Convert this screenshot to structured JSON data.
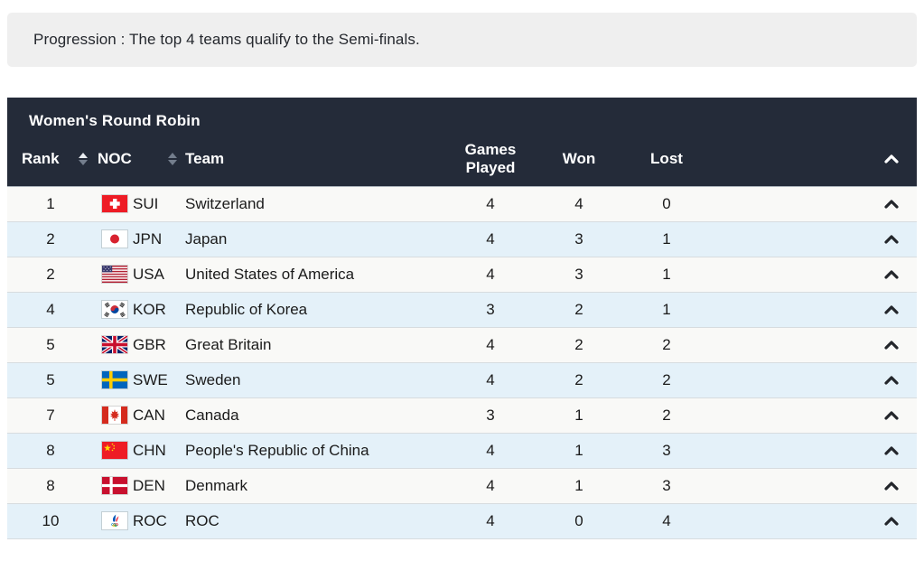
{
  "note": {
    "text": "Progression : The top 4 teams qualify to the Semi-finals."
  },
  "table": {
    "title": "Women's Round Robin",
    "columns": {
      "rank": "Rank",
      "noc": "NOC",
      "team": "Team",
      "games_played": "Games Played",
      "won": "Won",
      "lost": "Lost"
    },
    "icons": {
      "rank_sort": "sort-arrows-icon",
      "noc_sort": "sort-arrows-icon",
      "header_collapse": "chevron-up-icon",
      "row_expand": "chevron-up-icon"
    },
    "rows": [
      {
        "rank": "1",
        "noc": "SUI",
        "team": "Switzerland",
        "games_played": "4",
        "won": "4",
        "lost": "0"
      },
      {
        "rank": "2",
        "noc": "JPN",
        "team": "Japan",
        "games_played": "4",
        "won": "3",
        "lost": "1"
      },
      {
        "rank": "2",
        "noc": "USA",
        "team": "United States of America",
        "games_played": "4",
        "won": "3",
        "lost": "1"
      },
      {
        "rank": "4",
        "noc": "KOR",
        "team": "Republic of Korea",
        "games_played": "3",
        "won": "2",
        "lost": "1"
      },
      {
        "rank": "5",
        "noc": "GBR",
        "team": "Great Britain",
        "games_played": "4",
        "won": "2",
        "lost": "2"
      },
      {
        "rank": "5",
        "noc": "SWE",
        "team": "Sweden",
        "games_played": "4",
        "won": "2",
        "lost": "2"
      },
      {
        "rank": "7",
        "noc": "CAN",
        "team": "Canada",
        "games_played": "3",
        "won": "1",
        "lost": "2"
      },
      {
        "rank": "8",
        "noc": "CHN",
        "team": "People's Republic of China",
        "games_played": "4",
        "won": "1",
        "lost": "3"
      },
      {
        "rank": "8",
        "noc": "DEN",
        "team": "Denmark",
        "games_played": "4",
        "won": "1",
        "lost": "3"
      },
      {
        "rank": "10",
        "noc": "ROC",
        "team": "ROC",
        "games_played": "4",
        "won": "0",
        "lost": "4"
      }
    ],
    "colors": {
      "header_bg": "#242b39",
      "row_bg": "#f9f9f7",
      "row_alt_bg": "#e4f1f9",
      "note_bg": "#efefef",
      "header_text": "#ffffff"
    }
  }
}
